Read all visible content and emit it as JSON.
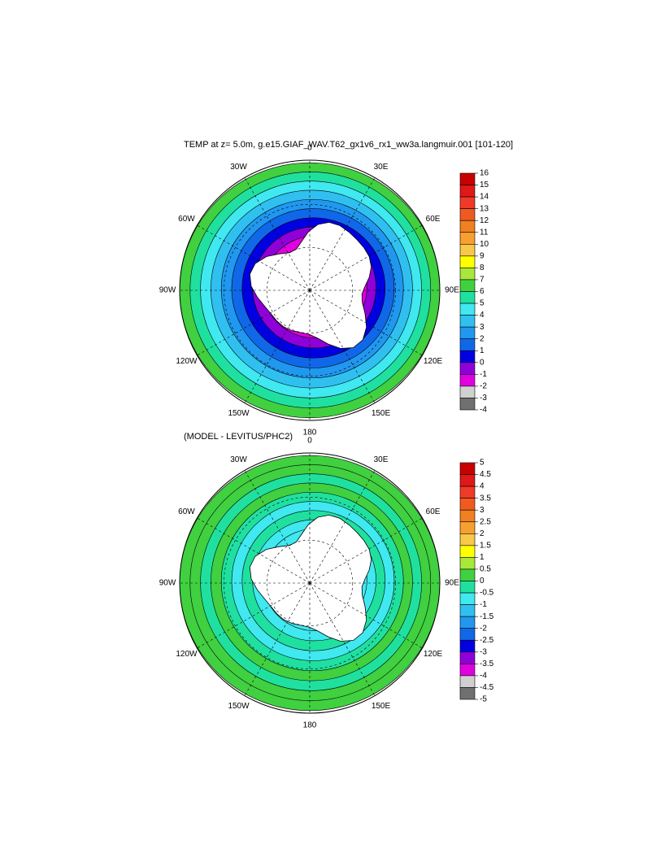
{
  "panels": [
    {
      "title": "TEMP at z=   5.0m, g.e15.GIAF_WAV.T62_gx1v6_rx1_ww3a.langmuir.001 [101-120]",
      "lon_labels": [
        "0",
        "30E",
        "60E",
        "90E",
        "120E",
        "150E",
        "180",
        "150W",
        "120W",
        "90W",
        "60W",
        "30W"
      ],
      "colorbar": {
        "ticks": [
          16,
          15,
          14,
          13,
          12,
          11,
          10,
          9,
          8,
          7,
          6,
          5,
          4,
          3,
          2,
          1,
          0,
          -1,
          -2,
          -3,
          -4
        ]
      }
    },
    {
      "title": "(MODEL - LEVITUS/PHC2)",
      "lon_labels": [
        "0",
        "30E",
        "60E",
        "90E",
        "120E",
        "150E",
        "180",
        "150W",
        "120W",
        "90W",
        "60W",
        "30W"
      ],
      "colorbar": {
        "ticks": [
          5,
          4.5,
          4,
          3.5,
          3,
          2.5,
          2,
          1.5,
          1,
          0.5,
          0,
          -0.5,
          -1,
          -1.5,
          -2,
          -2.5,
          -3,
          -3.5,
          -4,
          -4.5,
          -5
        ]
      }
    }
  ],
  "colors": [
    "#c80000",
    "#e01818",
    "#f03a28",
    "#f05a20",
    "#f08020",
    "#f7a030",
    "#f8c848",
    "#ffff00",
    "#a8e838",
    "#40d040",
    "#20e0a0",
    "#40e8f0",
    "#30c0f0",
    "#2098f0",
    "#1068e8",
    "#0000e0",
    "#9000d8",
    "#e000e0",
    "#d0d0d0",
    "#707070"
  ]
}
